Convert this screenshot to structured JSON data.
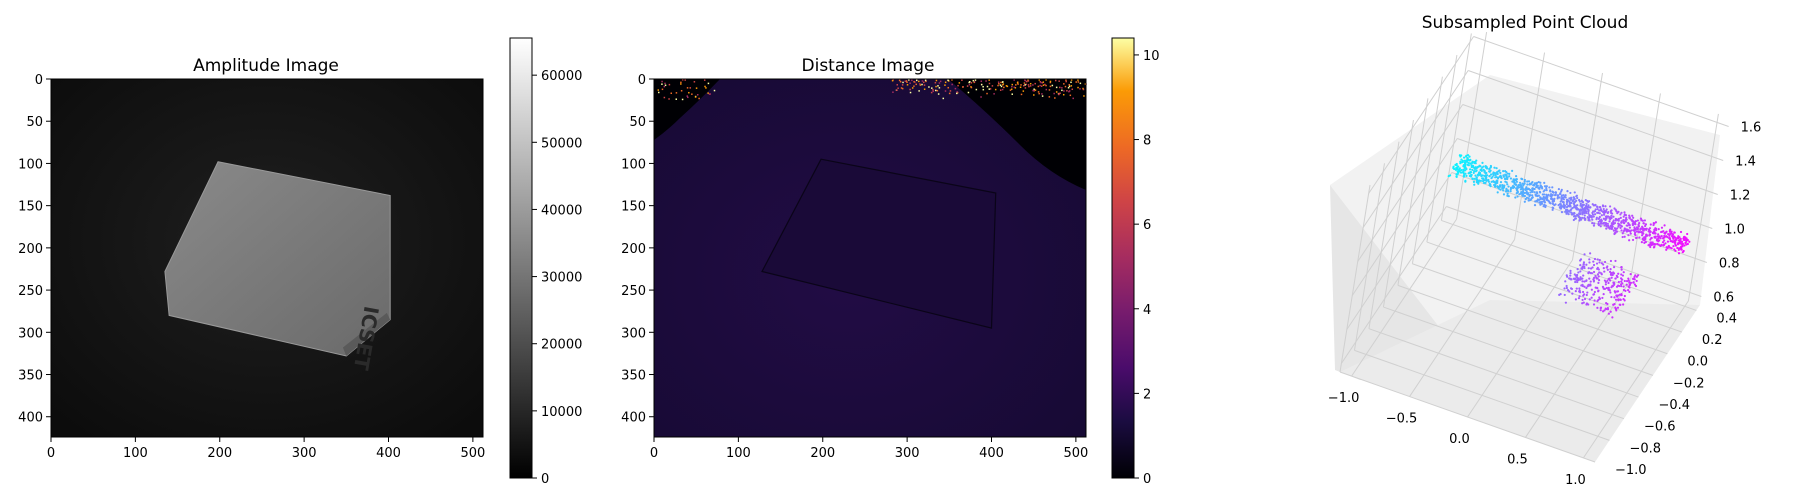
{
  "figure": {
    "panels": [
      {
        "title": "Amplitude Image"
      },
      {
        "title": "Distance Image"
      },
      {
        "title": "Subsampled Point Cloud"
      }
    ]
  },
  "chart_data": [
    {
      "type": "heatmap",
      "title": "Amplitude Image",
      "colormap": "gray",
      "x_ticks": [
        0,
        100,
        200,
        300,
        400,
        500
      ],
      "y_ticks": [
        0,
        50,
        100,
        150,
        200,
        250,
        300,
        350,
        400
      ],
      "xlim": [
        0,
        512
      ],
      "ylim": [
        424,
        0
      ],
      "colorbar": {
        "range": [
          0,
          65535
        ],
        "ticks": [
          0,
          10000,
          20000,
          30000,
          40000,
          50000,
          60000
        ]
      },
      "content": {
        "box_corners": [
          [
            198,
            98
          ],
          [
            402,
            138
          ],
          [
            402,
            285
          ],
          [
            350,
            328
          ],
          [
            140,
            280
          ],
          [
            135,
            228
          ]
        ],
        "box_label": "ICSET"
      }
    },
    {
      "type": "heatmap",
      "title": "Distance Image",
      "colormap": "inferno",
      "x_ticks": [
        0,
        100,
        200,
        300,
        400,
        500
      ],
      "y_ticks": [
        0,
        50,
        100,
        150,
        200,
        250,
        300,
        350,
        400
      ],
      "xlim": [
        0,
        512
      ],
      "ylim": [
        424,
        0
      ],
      "colorbar": {
        "range": [
          0,
          10.4
        ],
        "ticks": [
          0,
          2,
          4,
          6,
          8,
          10
        ]
      },
      "content": {
        "box_corners": [
          [
            198,
            95
          ],
          [
            405,
            135
          ],
          [
            400,
            295
          ],
          [
            128,
            228
          ]
        ]
      }
    },
    {
      "type": "scatter",
      "projection": "3d",
      "title": "Subsampled Point Cloud",
      "xlim": [
        -1.1,
        1.1
      ],
      "ylim": [
        -1.0,
        0.45
      ],
      "zlim": [
        0.55,
        1.65
      ],
      "x_ticks": [
        -1.0,
        -0.5,
        0.0,
        0.5,
        1.0
      ],
      "y_ticks": [
        -1.0,
        -0.8,
        -0.6,
        -0.4,
        -0.2,
        0.0,
        0.2,
        0.4
      ],
      "z_ticks": [
        0.6,
        0.8,
        1.0,
        1.2,
        1.4,
        1.6
      ],
      "colormap": "cool",
      "color_by": "x",
      "clusters": [
        {
          "name": "",
          "x_range": [
            -1.0,
            1.0
          ],
          "y_center": 0.25,
          "z_center": 1.0,
          "n": 1200
        },
        {
          "name": "",
          "x_range": [
            0.2,
            0.7
          ],
          "y_center": 0.0,
          "z_center": 0.8,
          "n": 300
        }
      ]
    }
  ]
}
